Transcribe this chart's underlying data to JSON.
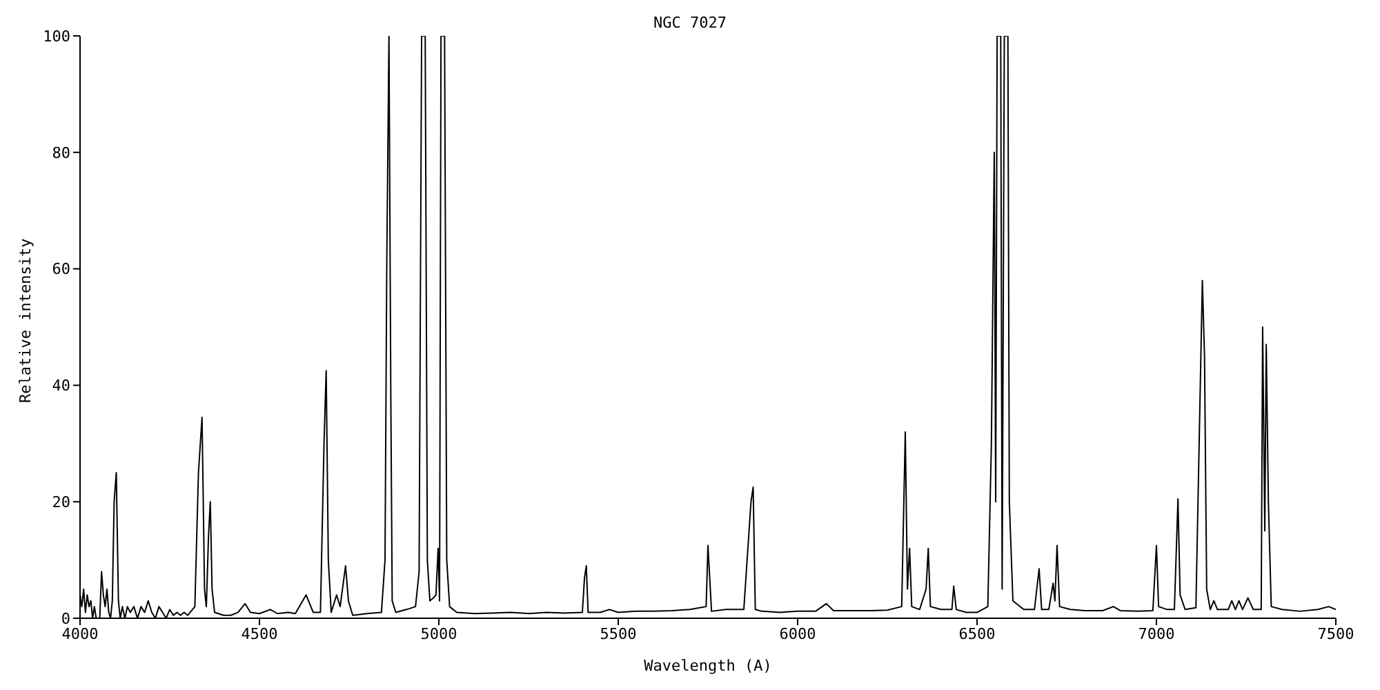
{
  "chart_data": {
    "type": "line",
    "title": "NGC 7027",
    "xlabel": "Wavelength (A)",
    "ylabel": "Relative intensity",
    "x": [
      4000,
      4005,
      4010,
      4015,
      4020,
      4025,
      4030,
      4035,
      4040,
      4045,
      4055,
      4060,
      4065,
      4070,
      4075,
      4080,
      4085,
      4090,
      4095,
      4101,
      4107,
      4112,
      4118,
      4125,
      4132,
      4140,
      4150,
      4160,
      4170,
      4180,
      4190,
      4200,
      4210,
      4220,
      4230,
      4240,
      4250,
      4260,
      4270,
      4280,
      4290,
      4300,
      4320,
      4330,
      4340,
      4347,
      4352,
      4358,
      4363,
      4368,
      4375,
      4400,
      4420,
      4440,
      4460,
      4475,
      4500,
      4530,
      4550,
      4580,
      4600,
      4630,
      4650,
      4670,
      4680,
      4686,
      4692,
      4700,
      4715,
      4725,
      4740,
      4748,
      4760,
      4800,
      4840,
      4850,
      4855,
      4861,
      4866,
      4870,
      4880,
      4910,
      4935,
      4945,
      4952,
      4962,
      4968,
      4975,
      4985,
      4992,
      4998,
      5002,
      5006,
      5016,
      5022,
      5030,
      5050,
      5100,
      5150,
      5200,
      5250,
      5300,
      5350,
      5400,
      5406,
      5411,
      5416,
      5450,
      5475,
      5500,
      5550,
      5600,
      5650,
      5700,
      5745,
      5750,
      5760,
      5800,
      5850,
      5870,
      5876,
      5882,
      5900,
      5950,
      6000,
      6050,
      6080,
      6100,
      6150,
      6200,
      6250,
      6290,
      6300,
      6306,
      6312,
      6318,
      6340,
      6358,
      6364,
      6370,
      6400,
      6430,
      6435,
      6442,
      6470,
      6500,
      6530,
      6540,
      6548,
      6552,
      6556,
      6566,
      6570,
      6576,
      6586,
      6590,
      6600,
      6630,
      6660,
      6673,
      6680,
      6700,
      6712,
      6717,
      6723,
      6730,
      6760,
      6800,
      6850,
      6880,
      6900,
      6950,
      6990,
      7000,
      7006,
      7030,
      7050,
      7060,
      7066,
      7080,
      7110,
      7128,
      7134,
      7140,
      7150,
      7160,
      7170,
      7200,
      7210,
      7220,
      7230,
      7240,
      7255,
      7270,
      7292,
      7296,
      7302,
      7306,
      7312,
      7320,
      7350,
      7400,
      7450,
      7480,
      7500
    ],
    "series": [
      {
        "color": "#000000",
        "values": [
          4,
          2,
          5,
          1,
          4,
          2,
          3,
          0,
          2,
          0,
          0,
          8,
          4,
          2,
          5,
          1,
          0,
          3,
          20,
          25,
          3,
          0,
          2,
          0,
          2,
          1,
          2,
          0,
          2,
          1,
          3,
          1,
          0,
          2,
          1,
          0,
          1.5,
          0.5,
          1,
          0.5,
          1,
          0.5,
          2,
          25,
          34.5,
          5,
          2,
          14,
          20,
          5,
          1,
          0.5,
          0.5,
          1,
          2.5,
          1,
          0.8,
          1.5,
          0.8,
          1,
          0.8,
          4,
          1,
          1,
          30,
          42.5,
          10,
          1,
          4,
          2,
          9,
          3,
          0.5,
          0.8,
          1,
          10,
          62,
          100,
          40,
          3,
          1,
          1.5,
          2,
          8,
          100,
          100,
          10,
          3,
          3.5,
          4,
          12,
          3,
          100,
          100,
          10,
          2,
          1,
          0.8,
          0.9,
          1,
          0.8,
          1,
          0.9,
          1,
          7,
          9,
          1,
          1,
          1.5,
          1,
          1.2,
          1.2,
          1.3,
          1.5,
          2,
          12.5,
          1.2,
          1.5,
          1.5,
          20,
          22.5,
          1.5,
          1.2,
          1,
          1.2,
          1.2,
          2.5,
          1.3,
          1.3,
          1.3,
          1.4,
          2,
          32,
          5,
          12,
          2,
          1.5,
          5,
          12,
          2,
          1.5,
          1.5,
          5.5,
          1.5,
          1,
          1,
          2,
          30,
          80,
          20,
          100,
          100,
          5,
          100,
          100,
          20,
          3,
          1.5,
          1.5,
          8.5,
          1.5,
          1.5,
          6,
          3,
          12.5,
          2,
          1.5,
          1.3,
          1.3,
          2,
          1.3,
          1.2,
          1.3,
          12.5,
          2,
          1.5,
          1.5,
          20.5,
          4,
          1.5,
          1.8,
          58,
          45,
          5,
          1.5,
          3,
          1.5,
          1.5,
          3,
          1.5,
          3,
          1.5,
          3.5,
          1.5,
          1.5,
          50,
          15,
          47,
          20,
          2,
          1.5,
          1.2,
          1.5,
          2,
          1.5
        ]
      }
    ],
    "xlim": [
      4000,
      7500
    ],
    "xticks": [
      4000,
      4500,
      5000,
      5500,
      6000,
      6500,
      7000,
      7500
    ],
    "ylim": [
      0,
      100
    ],
    "yticks": [
      0,
      20,
      40,
      60,
      80,
      100
    ],
    "grid": false
  }
}
